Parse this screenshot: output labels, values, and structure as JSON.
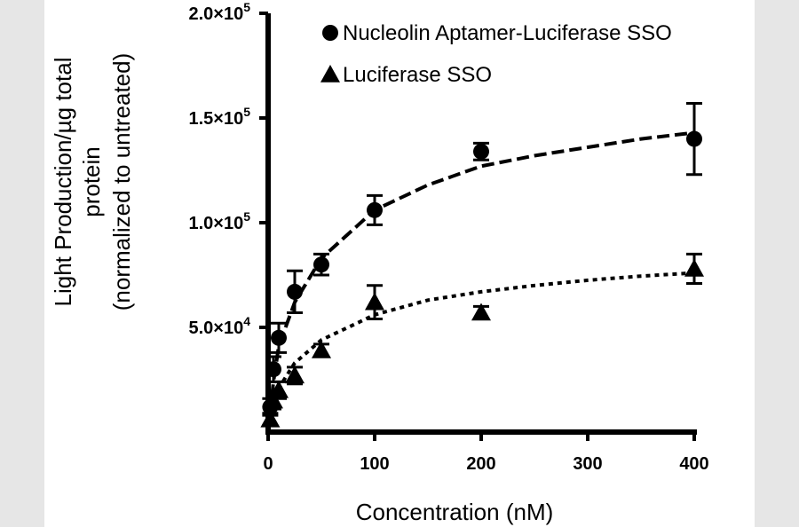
{
  "chart_data": {
    "type": "scatter",
    "xlabel": "Concentration (nM)",
    "ylabel_lines": [
      "Light Production/µg total",
      "protein",
      "(normalized to untreated)"
    ],
    "xlim": [
      0,
      400
    ],
    "ylim": [
      0,
      200000
    ],
    "x_ticks": [
      "0",
      "100",
      "200",
      "300",
      "400"
    ],
    "y_ticks": [
      {
        "value": 50000,
        "mantissa": "5.0×10",
        "exp": "4"
      },
      {
        "value": 100000,
        "mantissa": "1.0×10",
        "exp": "5"
      },
      {
        "value": 150000,
        "mantissa": "1.5×10",
        "exp": "5"
      },
      {
        "value": 200000,
        "mantissa": "2.0×10",
        "exp": "5"
      }
    ],
    "legend_position": "top-right",
    "series": [
      {
        "name": "Nucleolin Aptamer-Luciferase SSO",
        "marker": "circle",
        "fit": "dashed",
        "points": [
          {
            "x": 2,
            "y": 12000,
            "err": 4000
          },
          {
            "x": 5,
            "y": 30000,
            "err": 6000
          },
          {
            "x": 10,
            "y": 45000,
            "err": 7000
          },
          {
            "x": 25,
            "y": 67000,
            "err": 10000
          },
          {
            "x": 50,
            "y": 80000,
            "err": 5000
          },
          {
            "x": 100,
            "y": 106000,
            "err": 7000
          },
          {
            "x": 200,
            "y": 134000,
            "err": 4000
          },
          {
            "x": 400,
            "y": 140000,
            "err": 17000
          }
        ],
        "fit_curve": [
          [
            0,
            0
          ],
          [
            5,
            24000
          ],
          [
            10,
            41000
          ],
          [
            25,
            62000
          ],
          [
            50,
            83000
          ],
          [
            100,
            106000
          ],
          [
            150,
            118000
          ],
          [
            200,
            127000
          ],
          [
            250,
            132000
          ],
          [
            300,
            136000
          ],
          [
            350,
            140000
          ],
          [
            400,
            143000
          ]
        ]
      },
      {
        "name": "Luciferase SSO",
        "marker": "triangle",
        "fit": "dotted",
        "points": [
          {
            "x": 2,
            "y": 6000,
            "err": 3000
          },
          {
            "x": 5,
            "y": 15000,
            "err": 4000
          },
          {
            "x": 10,
            "y": 20000,
            "err": 4000
          },
          {
            "x": 25,
            "y": 27000,
            "err": 4000
          },
          {
            "x": 50,
            "y": 39000,
            "err": 3000
          },
          {
            "x": 100,
            "y": 62000,
            "err": 8000
          },
          {
            "x": 200,
            "y": 57000,
            "err": 3000
          },
          {
            "x": 400,
            "y": 78000,
            "err": 7000
          }
        ],
        "fit_curve": [
          [
            0,
            0
          ],
          [
            5,
            13000
          ],
          [
            10,
            21000
          ],
          [
            25,
            33000
          ],
          [
            50,
            44000
          ],
          [
            100,
            56000
          ],
          [
            150,
            63000
          ],
          [
            200,
            67000
          ],
          [
            250,
            70000
          ],
          [
            300,
            72500
          ],
          [
            350,
            74500
          ],
          [
            400,
            76000
          ]
        ]
      }
    ]
  }
}
